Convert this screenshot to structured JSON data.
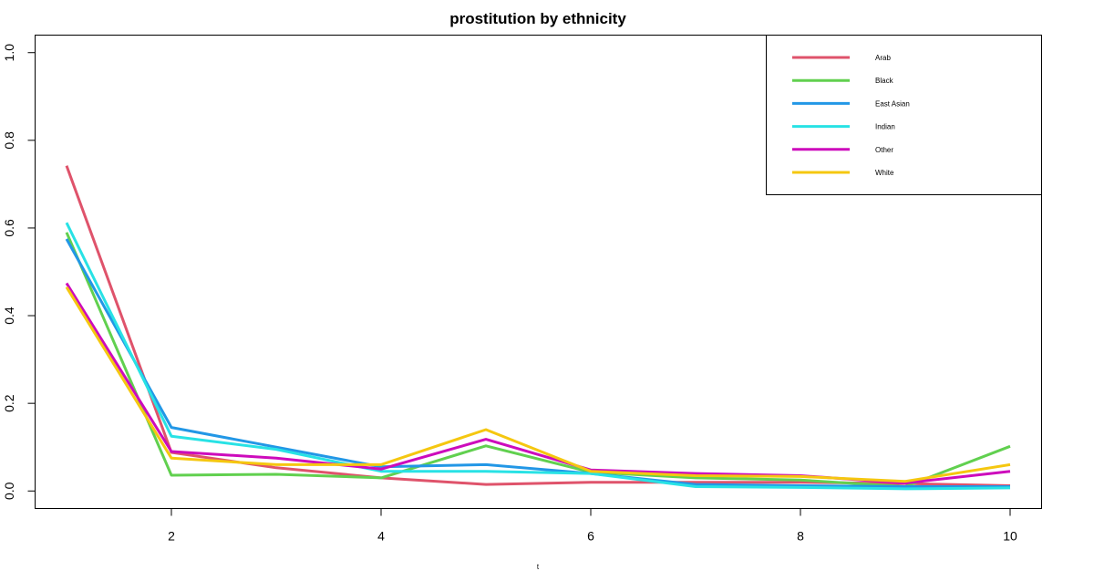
{
  "chart_data": {
    "type": "line",
    "title": "prostitution by ethnicity",
    "xlabel": "t",
    "ylabel": "",
    "xlim": [
      0.7,
      10.3
    ],
    "ylim": [
      -0.04,
      1.04
    ],
    "x_ticks": [
      2,
      4,
      6,
      8,
      10
    ],
    "y_ticks": [
      0.0,
      0.2,
      0.4,
      0.6,
      0.8,
      1.0
    ],
    "y_tick_labels": [
      "0.0",
      "0.2",
      "0.4",
      "0.6",
      "0.8",
      "1.0"
    ],
    "x_tick_labels": [
      "2",
      "4",
      "6",
      "8",
      "10"
    ],
    "grid": false,
    "legend_position": "top-right",
    "x": [
      1,
      2,
      3,
      4,
      5,
      6,
      7,
      8,
      9,
      10
    ],
    "series": [
      {
        "name": "Arab",
        "color": "#DF536B",
        "values": [
          0.742,
          0.088,
          0.053,
          0.03,
          0.015,
          0.02,
          0.02,
          0.02,
          0.017,
          0.012
        ]
      },
      {
        "name": "Black",
        "color": "#61D04F",
        "values": [
          0.59,
          0.036,
          0.038,
          0.03,
          0.103,
          0.043,
          0.03,
          0.025,
          0.01,
          0.102
        ]
      },
      {
        "name": "East Asian",
        "color": "#2297E6",
        "values": [
          0.575,
          0.145,
          0.1,
          0.055,
          0.06,
          0.04,
          0.015,
          0.012,
          0.01,
          0.01
        ]
      },
      {
        "name": "Indian",
        "color": "#28E2E5",
        "values": [
          0.612,
          0.125,
          0.095,
          0.045,
          0.045,
          0.04,
          0.01,
          0.008,
          0.005,
          0.007
        ]
      },
      {
        "name": "Other",
        "color": "#CD0BBC",
        "values": [
          0.474,
          0.09,
          0.075,
          0.05,
          0.118,
          0.048,
          0.04,
          0.035,
          0.018,
          0.045
        ]
      },
      {
        "name": "White",
        "color": "#F5C710",
        "values": [
          0.465,
          0.075,
          0.06,
          0.06,
          0.14,
          0.045,
          0.035,
          0.033,
          0.022,
          0.06
        ]
      }
    ]
  }
}
